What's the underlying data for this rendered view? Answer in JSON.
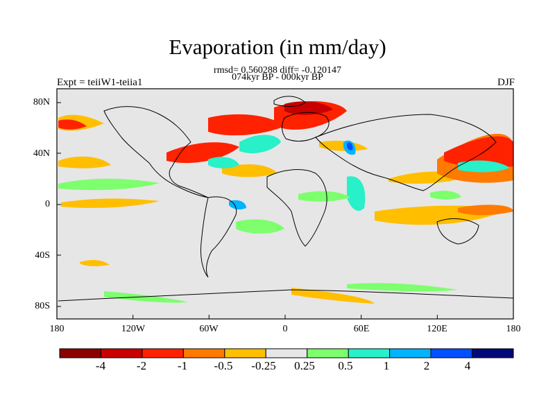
{
  "title": "Evaporation (in mm/day)",
  "stats": "rmsd= 0.560288 diff= -0.120147",
  "period": "074kyr BP - 000kyr BP",
  "left_label": "Expt = teiiW1-teiia1",
  "right_label": "DJF",
  "y_ticks": [
    "80N",
    "40N",
    "0",
    "40S",
    "80S"
  ],
  "x_ticks": [
    "180",
    "120W",
    "60W",
    "0",
    "60E",
    "120E",
    "180"
  ],
  "colorbar": {
    "colors": [
      "#8b0000",
      "#c80000",
      "#ff2200",
      "#ff7a00",
      "#ffbf00",
      "#e6e6e6",
      "#7dff6e",
      "#28f0c8",
      "#00b4ff",
      "#0050ff",
      "#00087a"
    ],
    "labels": [
      "-4",
      "-2",
      "-1",
      "-0.5",
      "-0.25",
      "0.25",
      "0.5",
      "1",
      "2",
      "4"
    ]
  },
  "colors": {
    "background": "#e6e6e6",
    "coast": "#000000"
  }
}
